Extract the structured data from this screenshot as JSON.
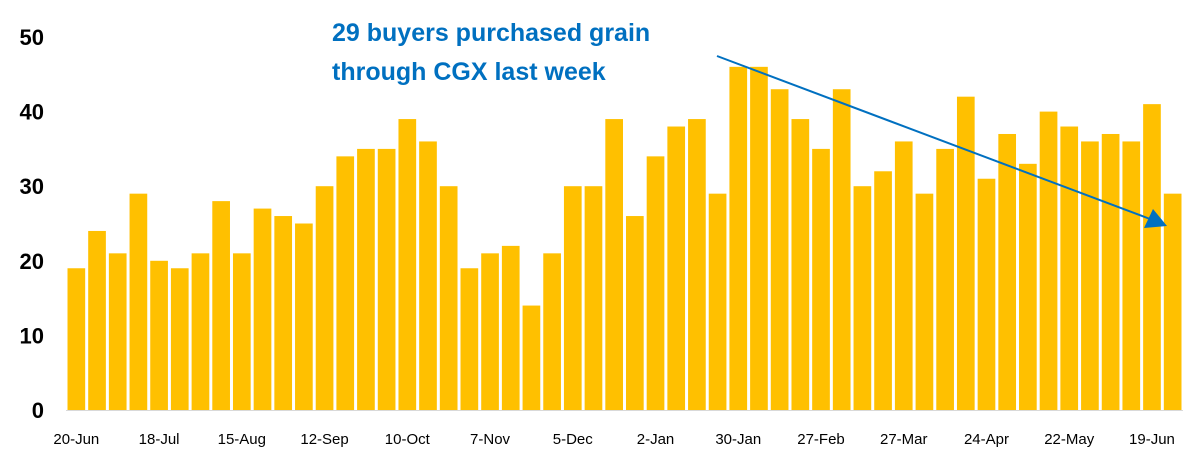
{
  "chart_data": {
    "type": "bar",
    "title": "",
    "xlabel": "",
    "ylabel": "",
    "ylim": [
      0,
      50
    ],
    "yticks": [
      0,
      10,
      20,
      30,
      40,
      50
    ],
    "grid": false,
    "bar_color": "#FFC000",
    "annotation_color": "#0070C0",
    "x_tick_labels": [
      "20-Jun",
      "18-Jul",
      "15-Aug",
      "12-Sep",
      "10-Oct",
      "7-Nov",
      "5-Dec",
      "2-Jan",
      "30-Jan",
      "27-Feb",
      "27-Mar",
      "24-Apr",
      "22-May",
      "19-Jun"
    ],
    "x_tick_every": 4,
    "values": [
      19,
      24,
      21,
      29,
      20,
      19,
      21,
      28,
      21,
      27,
      26,
      25,
      30,
      34,
      35,
      35,
      39,
      36,
      30,
      19,
      21,
      22,
      14,
      21,
      30,
      30,
      39,
      26,
      34,
      38,
      39,
      29,
      46,
      46,
      43,
      39,
      35,
      43,
      30,
      32,
      36,
      29,
      35,
      42,
      31,
      37,
      33,
      40,
      38,
      36,
      37,
      36,
      41,
      29
    ],
    "annotation": {
      "line1": "29 buyers purchased grain",
      "line2": "through CGX last week",
      "arrow_points_to_bar": 53
    }
  }
}
